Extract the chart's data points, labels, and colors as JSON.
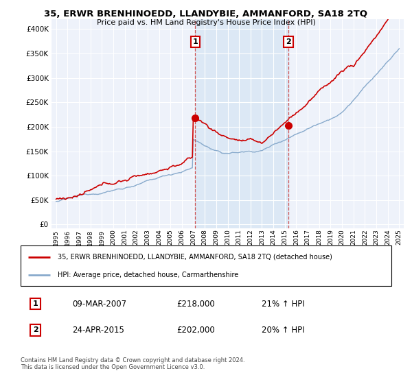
{
  "title": "35, ERWR BRENHINOEDD, LLANDYBIE, AMMANFORD, SA18 2TQ",
  "subtitle": "Price paid vs. HM Land Registry's House Price Index (HPI)",
  "yticks": [
    0,
    50000,
    100000,
    150000,
    200000,
    250000,
    300000,
    350000,
    400000
  ],
  "ytick_labels": [
    "£0",
    "£50K",
    "£100K",
    "£150K",
    "£200K",
    "£250K",
    "£300K",
    "£350K",
    "£400K"
  ],
  "ylim": [
    -8000,
    420000
  ],
  "xlim": [
    1994.6,
    2025.4
  ],
  "price_paid_color": "#cc0000",
  "hpi_color": "#88aacc",
  "shade_color": "#dce8f5",
  "marker1_x": 2007.17,
  "marker1_y": 218000,
  "marker2_x": 2015.31,
  "marker2_y": 202000,
  "vline1_x": 2007.17,
  "vline2_x": 2015.31,
  "legend_entry1": "35, ERWR BRENHINOEDD, LLANDYBIE, AMMANFORD, SA18 2TQ (detached house)",
  "legend_entry2": "HPI: Average price, detached house, Carmarthenshire",
  "footer": "Contains HM Land Registry data © Crown copyright and database right 2024.\nThis data is licensed under the Open Government Licence v3.0.",
  "background_color": "#eef2fa"
}
